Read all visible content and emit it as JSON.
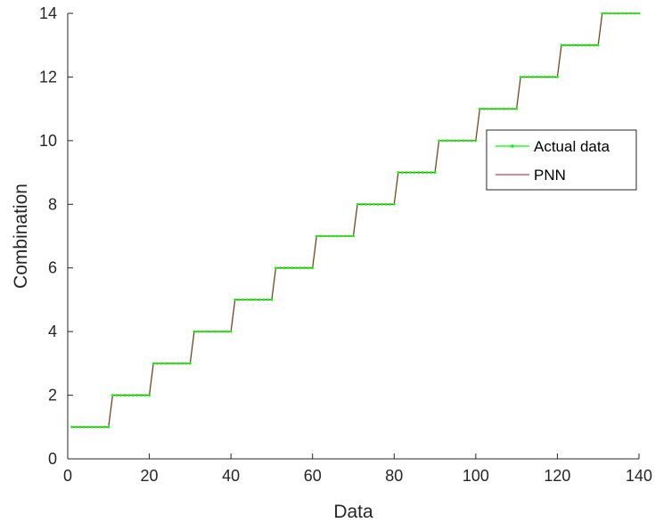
{
  "chart_data": {
    "type": "line",
    "xlabel": "Data",
    "ylabel": "Combination",
    "xlim": [
      0,
      140
    ],
    "ylim": [
      0,
      14
    ],
    "xticks": [
      0,
      20,
      40,
      60,
      80,
      100,
      120,
      140
    ],
    "yticks": [
      0,
      2,
      4,
      6,
      8,
      10,
      12,
      14
    ],
    "grid": false,
    "legend_position": "upper-right",
    "x": [
      1,
      2,
      3,
      4,
      5,
      6,
      7,
      8,
      9,
      10,
      11,
      12,
      13,
      14,
      15,
      16,
      17,
      18,
      19,
      20,
      21,
      22,
      23,
      24,
      25,
      26,
      27,
      28,
      29,
      30,
      31,
      32,
      33,
      34,
      35,
      36,
      37,
      38,
      39,
      40,
      41,
      42,
      43,
      44,
      45,
      46,
      47,
      48,
      49,
      50,
      51,
      52,
      53,
      54,
      55,
      56,
      57,
      58,
      59,
      60,
      61,
      62,
      63,
      64,
      65,
      66,
      67,
      68,
      69,
      70,
      71,
      72,
      73,
      74,
      75,
      76,
      77,
      78,
      79,
      80,
      81,
      82,
      83,
      84,
      85,
      86,
      87,
      88,
      89,
      90,
      91,
      92,
      93,
      94,
      95,
      96,
      97,
      98,
      99,
      100,
      101,
      102,
      103,
      104,
      105,
      106,
      107,
      108,
      109,
      110,
      111,
      112,
      113,
      114,
      115,
      116,
      117,
      118,
      119,
      120,
      121,
      122,
      123,
      124,
      125,
      126,
      127,
      128,
      129,
      130,
      131,
      132,
      133,
      134,
      135,
      136,
      137,
      138,
      139,
      140
    ],
    "series": [
      {
        "name": "Actual data",
        "color": "#00ff00",
        "marker": "point",
        "values": [
          1,
          1,
          1,
          1,
          1,
          1,
          1,
          1,
          1,
          1,
          2,
          2,
          2,
          2,
          2,
          2,
          2,
          2,
          2,
          2,
          3,
          3,
          3,
          3,
          3,
          3,
          3,
          3,
          3,
          3,
          4,
          4,
          4,
          4,
          4,
          4,
          4,
          4,
          4,
          4,
          5,
          5,
          5,
          5,
          5,
          5,
          5,
          5,
          5,
          5,
          6,
          6,
          6,
          6,
          6,
          6,
          6,
          6,
          6,
          6,
          7,
          7,
          7,
          7,
          7,
          7,
          7,
          7,
          7,
          7,
          8,
          8,
          8,
          8,
          8,
          8,
          8,
          8,
          8,
          8,
          9,
          9,
          9,
          9,
          9,
          9,
          9,
          9,
          9,
          9,
          10,
          10,
          10,
          10,
          10,
          10,
          10,
          10,
          10,
          10,
          11,
          11,
          11,
          11,
          11,
          11,
          11,
          11,
          11,
          11,
          12,
          12,
          12,
          12,
          12,
          12,
          12,
          12,
          12,
          12,
          13,
          13,
          13,
          13,
          13,
          13,
          13,
          13,
          13,
          13,
          14,
          14,
          14,
          14,
          14,
          14,
          14,
          14,
          14,
          14
        ]
      },
      {
        "name": "PNN",
        "color": "#a2142f",
        "marker": "none",
        "values": [
          1,
          1,
          1,
          1,
          1,
          1,
          1,
          1,
          1,
          1,
          2,
          2,
          2,
          2,
          2,
          2,
          2,
          2,
          2,
          2,
          3,
          3,
          3,
          3,
          3,
          3,
          3,
          3,
          3,
          3,
          4,
          4,
          4,
          4,
          4,
          4,
          4,
          4,
          4,
          4,
          5,
          5,
          5,
          5,
          5,
          5,
          5,
          5,
          5,
          5,
          6,
          6,
          6,
          6,
          6,
          6,
          6,
          6,
          6,
          6,
          7,
          7,
          7,
          7,
          7,
          7,
          7,
          7,
          7,
          7,
          8,
          8,
          8,
          8,
          8,
          8,
          8,
          8,
          8,
          8,
          9,
          9,
          9,
          9,
          9,
          9,
          9,
          9,
          9,
          9,
          10,
          10,
          10,
          10,
          10,
          10,
          10,
          10,
          10,
          10,
          11,
          11,
          11,
          11,
          11,
          11,
          11,
          11,
          11,
          11,
          12,
          12,
          12,
          12,
          12,
          12,
          12,
          12,
          12,
          12,
          13,
          13,
          13,
          13,
          13,
          13,
          13,
          13,
          13,
          13,
          14,
          14,
          14,
          14,
          14,
          14,
          14,
          14,
          14,
          14
        ]
      }
    ]
  }
}
